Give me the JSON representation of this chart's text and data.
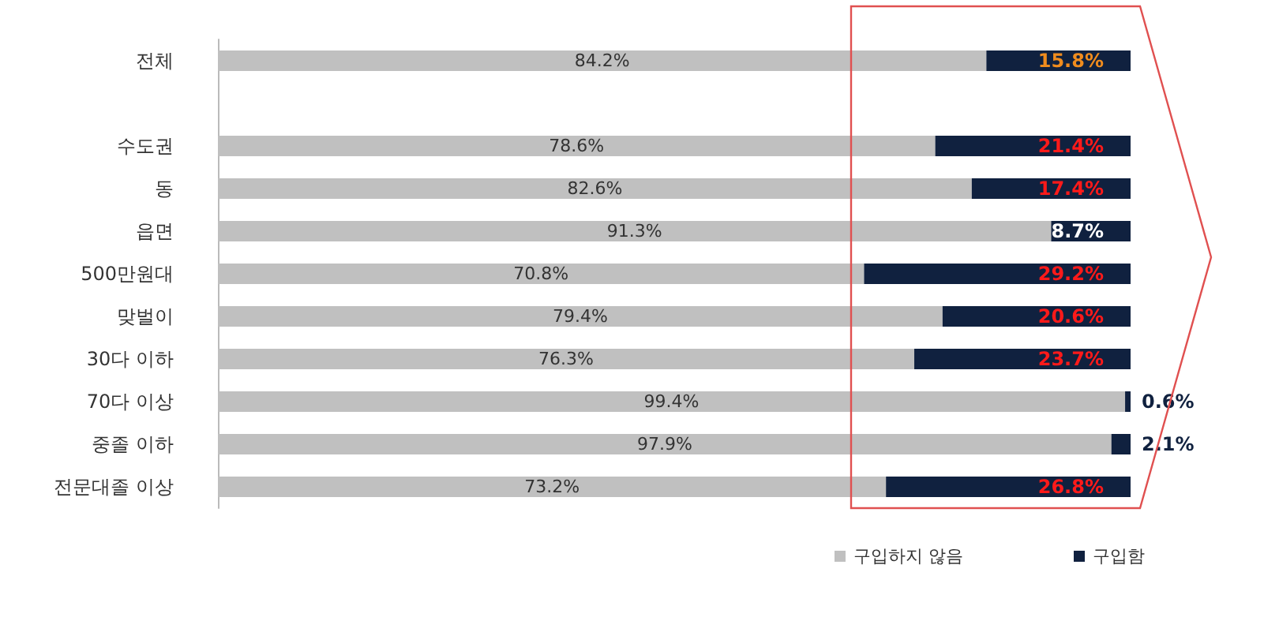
{
  "chart_data": {
    "type": "bar",
    "orientation": "horizontal",
    "stacked": true,
    "categories": [
      "전체",
      null,
      "수도권",
      "동",
      "읍면",
      "500만원대",
      "맞벌이",
      "30다 이하",
      "70다 이상",
      "중졸 이하",
      "전문대졸 이상"
    ],
    "series": [
      {
        "name": "구입하지 않음",
        "color": "#c0c0c0",
        "values": [
          84.2,
          null,
          78.6,
          82.6,
          91.3,
          70.8,
          79.4,
          76.3,
          99.4,
          97.9,
          73.2
        ],
        "value_labels": [
          "84.2%",
          null,
          "78.6%",
          "82.6%",
          "91.3%",
          "70.8%",
          "79.4%",
          "76.3%",
          "99.4%",
          "97.9%",
          "73.2%"
        ]
      },
      {
        "name": "구입함",
        "color": "#10213f",
        "values": [
          15.8,
          null,
          21.4,
          17.4,
          8.7,
          29.2,
          20.6,
          23.7,
          0.6,
          2.1,
          26.8
        ],
        "value_labels": [
          "15.8%",
          null,
          "21.4%",
          "17.4%",
          "8.7%",
          "29.2%",
          "20.6%",
          "23.7%",
          "0.6%",
          "2.1%",
          "26.8%"
        ]
      }
    ],
    "legend": "bottom right",
    "grid": false
  }
}
